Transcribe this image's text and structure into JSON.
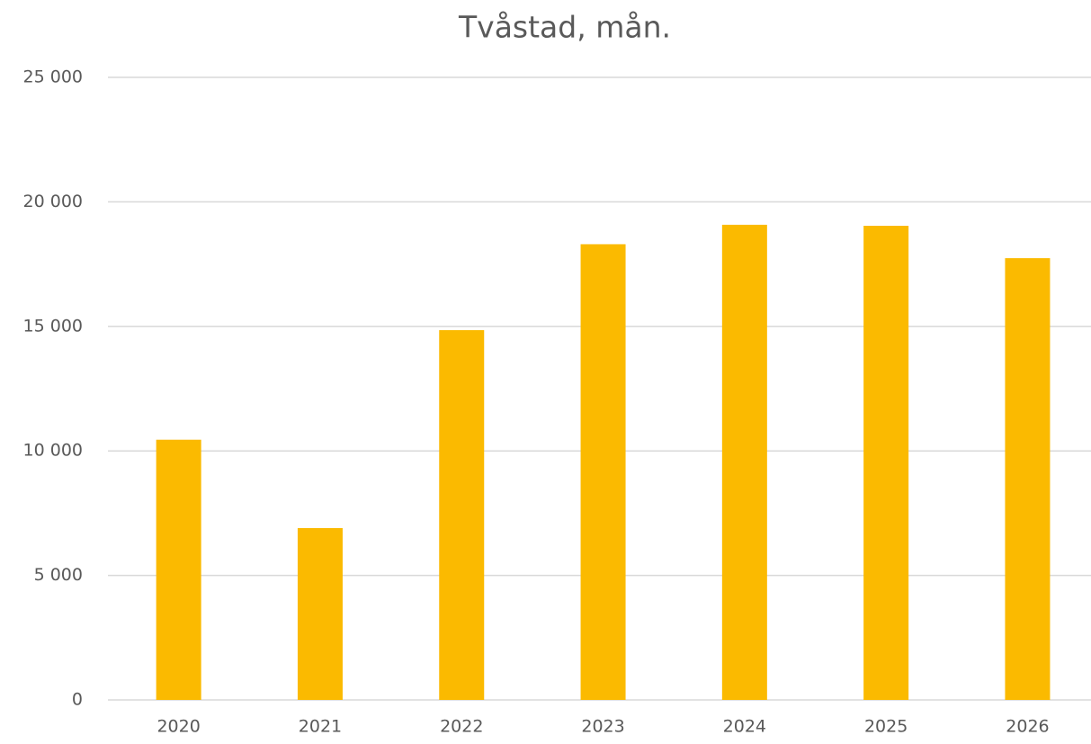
{
  "chart_data": {
    "type": "bar",
    "title": "Tvåstad, mån.",
    "categories": [
      "2020",
      "2021",
      "2022",
      "2023",
      "2024",
      "2025",
      "2026"
    ],
    "values": [
      10450,
      6900,
      14850,
      18300,
      19080,
      19040,
      17740
    ],
    "color": "#fbba00",
    "ylim": [
      0,
      25000
    ],
    "yticks": [
      0,
      {
        "value": 5000,
        "label": "5 000"
      },
      {
        "value": 10000,
        "label": "10 000"
      },
      {
        "value": 15000,
        "label": "15 000"
      },
      {
        "value": 20000,
        "label": "20 000"
      },
      {
        "value": 25000,
        "label": "25 000"
      }
    ],
    "grid": true
  }
}
